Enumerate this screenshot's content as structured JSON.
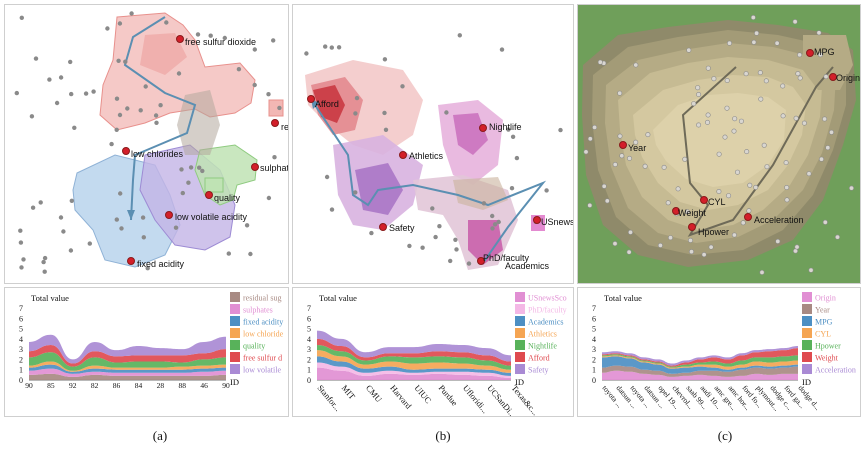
{
  "captions": [
    "(a)",
    "(b)",
    "(c)"
  ],
  "colors": {
    "background_points": "#8a8a8a",
    "anchor_points": "#d31f2a",
    "trajectory": "#5b8fb2"
  },
  "maps": [
    {
      "id": "a",
      "labels": [
        "free sulfur dioxide",
        "res",
        "low chlorides",
        "sulphates",
        "quality",
        "low volatile acidity",
        "fixed acidity"
      ]
    },
    {
      "id": "b",
      "labels": [
        "Afford",
        "Nightlife",
        "Athletics",
        "Safety",
        "USnews",
        "PhD/faculty",
        "Academics"
      ]
    },
    {
      "id": "c",
      "labels": [
        "MPG",
        "Origin",
        "Year",
        "CYL",
        "Weight",
        "Hpower",
        "Acceleration"
      ]
    }
  ],
  "chart_data": [
    {
      "type": "area",
      "stacked": true,
      "title": "Total value",
      "xlabel": "ID",
      "yticks": [
        0,
        1,
        2,
        3,
        4,
        5,
        6,
        7
      ],
      "ylim": [
        0,
        7
      ],
      "x": [
        "90",
        "85",
        "92",
        "82",
        "86",
        "84",
        "28",
        "88",
        "46",
        "90"
      ],
      "series": [
        {
          "name": "residual sug",
          "color": "#a88a83",
          "values": [
            0.5,
            0.6,
            0.3,
            0.5,
            0.4,
            0.4,
            0.4,
            0.4,
            0.4,
            0.5
          ]
        },
        {
          "name": "sulphates",
          "color": "#e18fd3",
          "values": [
            0.4,
            0.5,
            0.3,
            0.3,
            0.3,
            0.3,
            0.3,
            0.3,
            0.4,
            0.4
          ]
        },
        {
          "name": "fixed acidity",
          "color": "#4d8fc3",
          "values": [
            0.3,
            0.4,
            0.2,
            0.3,
            0.3,
            0.3,
            0.3,
            0.3,
            0.3,
            0.3
          ]
        },
        {
          "name": "low chloride",
          "color": "#f5a553",
          "values": [
            0.2,
            0.3,
            0.1,
            0.3,
            0.2,
            0.2,
            0.2,
            0.3,
            0.3,
            0.3
          ]
        },
        {
          "name": "quality",
          "color": "#58b25a",
          "values": [
            0.8,
            0.9,
            0.4,
            0.8,
            0.5,
            0.6,
            0.6,
            0.4,
            0.6,
            0.7
          ]
        },
        {
          "name": "free sulfur d",
          "color": "#df4a4f",
          "values": [
            0.6,
            0.7,
            0.3,
            0.6,
            0.6,
            0.6,
            0.6,
            0.7,
            0.6,
            0.8
          ]
        },
        {
          "name": "low volatile",
          "color": "#a98ad4",
          "values": [
            0.9,
            1.0,
            0.4,
            0.9,
            0.6,
            0.9,
            0.7,
            0.6,
            1.1,
            1.2
          ]
        }
      ]
    },
    {
      "type": "area",
      "stacked": true,
      "title": "Total value",
      "xlabel": "ID",
      "yticks": [
        0,
        1,
        2,
        3,
        4,
        5,
        6,
        7
      ],
      "ylim": [
        0,
        7
      ],
      "x": [
        "Stanfor...",
        "MIT",
        "CMU",
        "Harvard",
        "UIUC",
        "Purdue",
        "Ufloridi...",
        "UCSanDi...",
        "Texas&c..."
      ],
      "series": [
        {
          "name": "USnewsSco",
          "color": "#e18fd3",
          "values": [
            1.2,
            0.9,
            0.4,
            0.6,
            0.5,
            0.6,
            0.5,
            0.4,
            0.2
          ]
        },
        {
          "name": "PhD/faculty",
          "color": "#f4b8e6",
          "values": [
            0.5,
            0.4,
            0.3,
            0.3,
            0.2,
            0.2,
            0.3,
            0.3,
            0.2
          ]
        },
        {
          "name": "Academics",
          "color": "#4d8fc3",
          "values": [
            0.6,
            0.5,
            0.4,
            0.4,
            0.3,
            0.3,
            0.3,
            0.3,
            0.3
          ]
        },
        {
          "name": "Athletics",
          "color": "#f5a553",
          "values": [
            0.6,
            0.5,
            0.4,
            0.5,
            0.6,
            0.6,
            0.5,
            0.4,
            0.3
          ]
        },
        {
          "name": "Nightlife",
          "color": "#58b25a",
          "values": [
            0.5,
            0.5,
            0.4,
            0.5,
            0.6,
            0.6,
            0.6,
            0.5,
            0.4
          ]
        },
        {
          "name": "Afford",
          "color": "#df4a4f",
          "values": [
            0.6,
            0.5,
            0.3,
            0.3,
            0.4,
            0.5,
            0.5,
            0.5,
            0.4
          ]
        },
        {
          "name": "Safety",
          "color": "#a98ad4",
          "values": [
            0.8,
            0.7,
            0.5,
            0.6,
            0.6,
            0.7,
            0.7,
            0.7,
            0.6
          ]
        }
      ]
    },
    {
      "type": "area",
      "stacked": true,
      "title": "Total value",
      "xlabel": "ID",
      "yticks": [
        0,
        1,
        2,
        3,
        4,
        5,
        6,
        7
      ],
      "ylim": [
        0,
        7
      ],
      "x": [
        "toyota ...",
        "datsun ...",
        "toyota ...",
        "datsun ...",
        "opel 19...",
        "chevrol...",
        "saab 99...",
        "audi 10...",
        "amc gre...",
        "amc hor...",
        "ford fo...",
        "plymout...",
        "dodge c...",
        "ford ga...",
        "dodge d..."
      ],
      "series": [
        {
          "name": "Origin",
          "color": "#e18fd3",
          "values": [
            0.7,
            0.9,
            0.8,
            0.6,
            0.5,
            0.3,
            0.4,
            0.5,
            0.4,
            0.3,
            0.4,
            0.6,
            0.5,
            0.6,
            0.6
          ]
        },
        {
          "name": "Year",
          "color": "#a88a83",
          "values": [
            0.5,
            0.5,
            0.5,
            0.4,
            0.4,
            0.3,
            0.3,
            0.4,
            0.5,
            0.5,
            0.6,
            0.6,
            0.6,
            0.6,
            0.7
          ]
        },
        {
          "name": "MPG",
          "color": "#4d8fc3",
          "values": [
            1.0,
            0.9,
            0.8,
            0.7,
            0.6,
            0.5,
            0.5,
            0.4,
            0.3,
            0.2,
            0.2,
            0.2,
            0.2,
            0.2,
            0.2
          ]
        },
        {
          "name": "CYL",
          "color": "#f5a553",
          "values": [
            0.1,
            0.1,
            0.1,
            0.1,
            0.1,
            0.1,
            0.1,
            0.2,
            0.3,
            0.3,
            0.3,
            0.4,
            0.4,
            0.4,
            0.4
          ]
        },
        {
          "name": "Hpower",
          "color": "#58b25a",
          "values": [
            0.1,
            0.1,
            0.1,
            0.1,
            0.1,
            0.1,
            0.2,
            0.2,
            0.3,
            0.3,
            0.4,
            0.4,
            0.5,
            0.5,
            0.5
          ]
        },
        {
          "name": "Weight",
          "color": "#df4a4f",
          "values": [
            0.1,
            0.1,
            0.1,
            0.1,
            0.1,
            0.1,
            0.2,
            0.3,
            0.4,
            0.4,
            0.5,
            0.5,
            0.6,
            0.6,
            0.7
          ]
        },
        {
          "name": "Acceleration",
          "color": "#a98ad4",
          "values": [
            0.2,
            0.2,
            0.2,
            0.2,
            0.2,
            0.2,
            0.2,
            0.2,
            0.2,
            0.2,
            0.2,
            0.2,
            0.2,
            0.2,
            0.2
          ]
        }
      ]
    }
  ]
}
